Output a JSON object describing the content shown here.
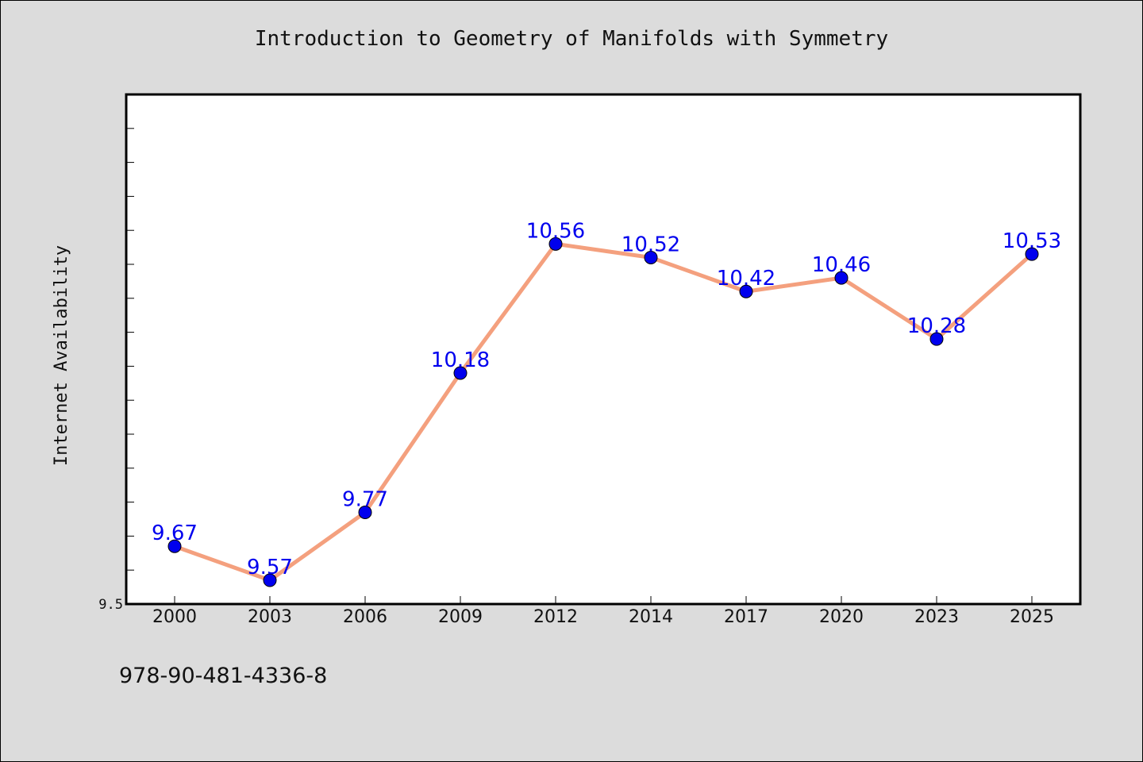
{
  "chart_data": {
    "type": "line",
    "title": "Introduction to Geometry of Manifolds with Symmetry",
    "ylabel": "Internet Availability",
    "xlabel": "",
    "categories": [
      "2000",
      "2003",
      "2006",
      "2009",
      "2012",
      "2014",
      "2017",
      "2020",
      "2023",
      "2025"
    ],
    "values": [
      9.67,
      9.57,
      9.77,
      10.18,
      10.56,
      10.52,
      10.42,
      10.46,
      10.28,
      10.53
    ],
    "value_labels": [
      "9.67",
      "9.57",
      "9.77",
      "10.18",
      "10.56",
      "10.52",
      "10.42",
      "10.46",
      "10.28",
      "10.53"
    ],
    "ylim": [
      9.5,
      11.0
    ],
    "y_tick_step": 0.1,
    "y_tick_labels": [
      "9.5"
    ],
    "grid": false,
    "line_color": "#f4a07e",
    "marker_color": "#0000ee",
    "label_color": "#0000ee"
  },
  "footer": {
    "isbn": "978-90-481-4336-8"
  }
}
